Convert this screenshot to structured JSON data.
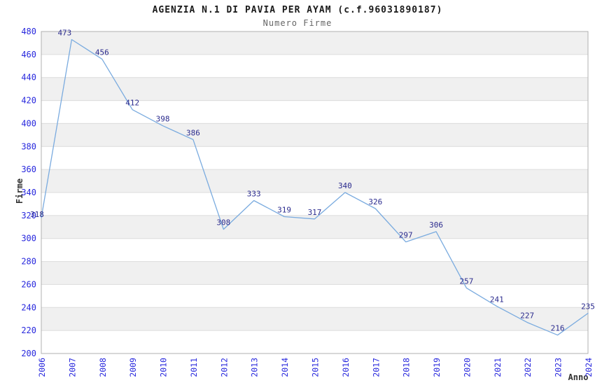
{
  "header": {
    "title": "AGENZIA N.1 DI PAVIA PER AYAM (c.f.96031890187)",
    "subtitle": "Numero Firme"
  },
  "chart_data": {
    "type": "line",
    "title": "AGENZIA N.1 DI PAVIA PER AYAM (c.f.96031890187)",
    "subtitle": "Numero Firme",
    "xlabel": "Anno",
    "ylabel": "Firme",
    "categories": [
      "2006",
      "2007",
      "2008",
      "2009",
      "2010",
      "2011",
      "2012",
      "2013",
      "2014",
      "2015",
      "2016",
      "2017",
      "2018",
      "2019",
      "2020",
      "2021",
      "2022",
      "2023",
      "2024"
    ],
    "values": [
      318,
      473,
      456,
      412,
      398,
      386,
      308,
      333,
      319,
      317,
      340,
      326,
      297,
      306,
      257,
      241,
      227,
      216,
      235
    ],
    "series": [
      {
        "name": "Numero Firme",
        "values": [
          318,
          473,
          456,
          412,
          398,
          386,
          308,
          333,
          319,
          317,
          340,
          326,
          297,
          306,
          257,
          241,
          227,
          216,
          235
        ]
      }
    ],
    "ylim": [
      200,
      480
    ],
    "ytick_step": 20,
    "grid": true,
    "legend": "none",
    "data_labels_shown": true,
    "colors": {
      "line": "#7aabdf",
      "tick_label": "#2828dd",
      "data_label": "#2b2b8e",
      "band": "#f0f0f0",
      "grid_line": "#dcdcdc",
      "plot_border": "#b0b0b0",
      "title": "#1a1a1a",
      "subtitle": "#666666",
      "axis_title": "#333333",
      "background": "#ffffff"
    }
  }
}
